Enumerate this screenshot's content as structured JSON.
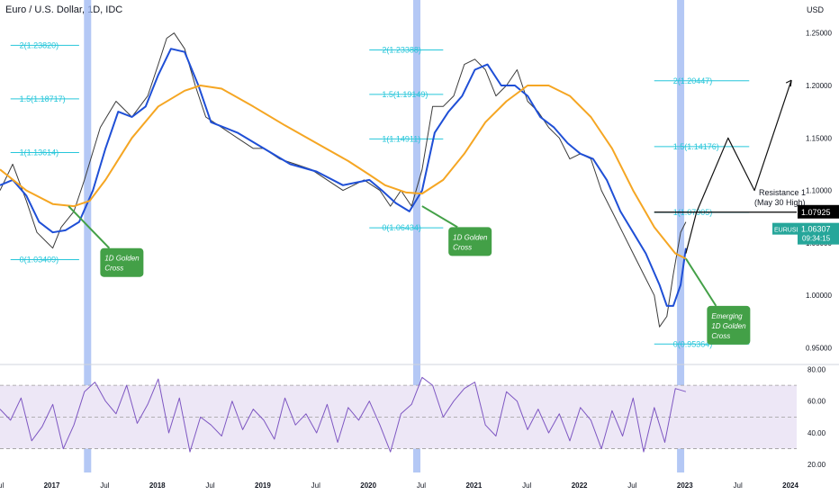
{
  "header": {
    "title": "Euro / U.S. Dollar, 1D, IDC",
    "currency": "USD"
  },
  "colors": {
    "price": "#3b3b3b",
    "ma_fast": "#1f4fd6",
    "ma_slow": "#f5a623",
    "fib": "#26c6da",
    "highlight": "#9bb5f2",
    "callout": "#43a047",
    "rsi": "#7e57c2",
    "rsi_band": "#ede7f6",
    "black_level": "#000000",
    "eurusd_tag": "#26a69a"
  },
  "chart_data": [
    {
      "type": "line",
      "title": "",
      "price_axis": {
        "ticks": [
          0.95,
          1.0,
          1.05,
          1.1,
          1.15,
          1.2,
          1.25
        ],
        "tick_labels": [
          "0.95000",
          "1.00000",
          "1.05000",
          "1.10000",
          "1.15000",
          "1.20000",
          "1.25000"
        ],
        "ylim": [
          0.935,
          1.26
        ]
      },
      "time_axis": {
        "labels": [
          "Jul",
          "2017",
          "Jul",
          "2018",
          "Jul",
          "2019",
          "Jul",
          "2020",
          "Jul",
          "2021",
          "Jul",
          "2022",
          "Jul",
          "2023",
          "Jul",
          "2024"
        ],
        "xlim": [
          2016.5,
          2024.05
        ]
      },
      "series": [
        {
          "name": "",
          "role": "price",
          "x": [
            2016.5,
            2016.62,
            2016.75,
            2016.85,
            2016.95,
            2017.0,
            2017.08,
            2017.2,
            2017.3,
            2017.45,
            2017.6,
            2017.75,
            2017.9,
            2018.0,
            2018.08,
            2018.15,
            2018.25,
            2018.35,
            2018.45,
            2018.6,
            2018.75,
            2018.9,
            2019.0,
            2019.15,
            2019.3,
            2019.45,
            2019.6,
            2019.75,
            2019.85,
            2019.95,
            2020.1,
            2020.2,
            2020.3,
            2020.4,
            2020.5,
            2020.6,
            2020.7,
            2020.8,
            2020.9,
            2021.0,
            2021.1,
            2021.2,
            2021.3,
            2021.4,
            2021.5,
            2021.6,
            2021.7,
            2021.8,
            2021.9,
            2022.0,
            2022.1,
            2022.2,
            2022.3,
            2022.4,
            2022.5,
            2022.6,
            2022.7,
            2022.75,
            2022.82,
            2022.88,
            2022.95,
            2023.0
          ],
          "values": [
            1.1,
            1.125,
            1.09,
            1.06,
            1.05,
            1.045,
            1.065,
            1.08,
            1.11,
            1.16,
            1.185,
            1.17,
            1.19,
            1.22,
            1.245,
            1.25,
            1.235,
            1.2,
            1.17,
            1.16,
            1.15,
            1.14,
            1.14,
            1.13,
            1.125,
            1.12,
            1.11,
            1.1,
            1.105,
            1.11,
            1.1,
            1.085,
            1.1,
            1.085,
            1.12,
            1.18,
            1.18,
            1.19,
            1.22,
            1.225,
            1.215,
            1.19,
            1.2,
            1.215,
            1.185,
            1.175,
            1.16,
            1.15,
            1.13,
            1.135,
            1.13,
            1.1,
            1.08,
            1.06,
            1.04,
            1.02,
            1.0,
            0.97,
            0.98,
            1.02,
            1.06,
            1.07
          ]
        },
        {
          "name": "",
          "role": "ma_fast",
          "x": [
            2016.5,
            2016.62,
            2016.75,
            2016.87,
            2017.0,
            2017.12,
            2017.25,
            2017.38,
            2017.5,
            2017.62,
            2017.75,
            2017.88,
            2018.0,
            2018.12,
            2018.25,
            2018.38,
            2018.5,
            2018.75,
            2019.0,
            2019.25,
            2019.5,
            2019.75,
            2020.0,
            2020.12,
            2020.25,
            2020.38,
            2020.5,
            2020.62,
            2020.75,
            2020.88,
            2021.0,
            2021.12,
            2021.25,
            2021.38,
            2021.5,
            2021.62,
            2021.75,
            2021.88,
            2022.0,
            2022.12,
            2022.25,
            2022.38,
            2022.5,
            2022.62,
            2022.75,
            2022.82,
            2022.88,
            2022.95,
            2023.0
          ],
          "values": [
            1.105,
            1.11,
            1.095,
            1.07,
            1.06,
            1.062,
            1.07,
            1.1,
            1.14,
            1.175,
            1.17,
            1.18,
            1.21,
            1.235,
            1.232,
            1.2,
            1.165,
            1.155,
            1.14,
            1.125,
            1.118,
            1.105,
            1.11,
            1.1,
            1.088,
            1.08,
            1.1,
            1.155,
            1.175,
            1.19,
            1.215,
            1.22,
            1.2,
            1.2,
            1.19,
            1.17,
            1.16,
            1.145,
            1.135,
            1.13,
            1.11,
            1.08,
            1.06,
            1.04,
            1.01,
            0.99,
            0.99,
            1.01,
            1.045
          ]
        },
        {
          "name": "",
          "role": "ma_slow",
          "x": [
            2016.5,
            2016.75,
            2017.0,
            2017.2,
            2017.35,
            2017.5,
            2017.75,
            2018.0,
            2018.25,
            2018.4,
            2018.6,
            2018.9,
            2019.2,
            2019.5,
            2019.8,
            2020.0,
            2020.15,
            2020.35,
            2020.5,
            2020.7,
            2020.9,
            2021.1,
            2021.3,
            2021.5,
            2021.7,
            2021.9,
            2022.1,
            2022.3,
            2022.5,
            2022.7,
            2022.9,
            2023.0
          ],
          "values": [
            1.12,
            1.1,
            1.087,
            1.085,
            1.09,
            1.11,
            1.15,
            1.18,
            1.195,
            1.2,
            1.197,
            1.18,
            1.162,
            1.145,
            1.128,
            1.115,
            1.105,
            1.098,
            1.097,
            1.11,
            1.135,
            1.165,
            1.185,
            1.2,
            1.2,
            1.19,
            1.17,
            1.14,
            1.1,
            1.065,
            1.04,
            1.035
          ]
        },
        {
          "name": "",
          "role": "projection",
          "x": [
            2023.0,
            2023.1,
            2023.4,
            2023.65,
            2024.0
          ],
          "values": [
            1.04,
            1.079,
            1.15,
            1.1,
            1.205
          ]
        }
      ],
      "fib_levels": [
        {
          "label": "2(1.23820)",
          "value": 1.2382,
          "x0": 2016.6,
          "x1": 2017.25
        },
        {
          "label": "1.5(1.18717)",
          "value": 1.18717,
          "x0": 2016.6,
          "x1": 2017.25
        },
        {
          "label": "1(1.13614)",
          "value": 1.13614,
          "x0": 2016.6,
          "x1": 2017.25
        },
        {
          "label": "0(1.03409)",
          "value": 1.03409,
          "x0": 2016.6,
          "x1": 2017.25
        },
        {
          "label": "2(1.23388)",
          "value": 1.23388,
          "x0": 2020.0,
          "x1": 2020.7
        },
        {
          "label": "1.5(1.19149)",
          "value": 1.19149,
          "x0": 2020.0,
          "x1": 2020.7
        },
        {
          "label": "1(1.14911)",
          "value": 1.14911,
          "x0": 2020.0,
          "x1": 2020.7
        },
        {
          "label": "0(1.06434)",
          "value": 1.06434,
          "x0": 2020.0,
          "x1": 2020.7
        },
        {
          "label": "2(1.20447)",
          "value": 1.20447,
          "x0": 2022.7,
          "x1": 2023.6
        },
        {
          "label": "1.5(1.14176)",
          "value": 1.14176,
          "x0": 2022.7,
          "x1": 2023.6
        },
        {
          "label": "1(1.07905)",
          "value": 1.07905,
          "x0": 2022.7,
          "x1": 2023.6
        },
        {
          "label": "0(0.95364)",
          "value": 0.95364,
          "x0": 2022.7,
          "x1": 2023.6
        }
      ],
      "resistance": {
        "value": 1.07925,
        "label": "1.07925",
        "x0": 2022.7,
        "annotation_line1": "Resistance 1",
        "annotation_line2": "(May 30 High)"
      },
      "current": {
        "symbol": "EURUSD",
        "price": "1.06307",
        "countdown": "09:34:15",
        "value": 1.06307
      },
      "highlight_bands": [
        2017.33,
        2020.45,
        2022.95
      ],
      "annotations": [
        {
          "text": "1D Golden\nCross",
          "x": 2017.45,
          "y": 1.045
        },
        {
          "text": "1D Golden\nCross",
          "x": 2020.75,
          "y": 1.065
        },
        {
          "text": "Emerging\n1D Golden\nCross",
          "x": 2023.2,
          "y": 0.99
        }
      ]
    },
    {
      "type": "line",
      "title": "",
      "rsi_axis": {
        "ticks": [
          20,
          40,
          60,
          80
        ],
        "tick_labels": [
          "20.00",
          "40.00",
          "60.00",
          "80.00"
        ],
        "ylim": [
          15,
          82
        ]
      },
      "bands": {
        "upper": 70,
        "lower": 30,
        "mid": 50
      },
      "series": [
        {
          "name": "",
          "role": "rsi",
          "x": [
            2016.5,
            2016.6,
            2016.7,
            2016.8,
            2016.9,
            2017.0,
            2017.1,
            2017.2,
            2017.3,
            2017.4,
            2017.5,
            2017.6,
            2017.7,
            2017.8,
            2017.9,
            2018.0,
            2018.1,
            2018.2,
            2018.3,
            2018.4,
            2018.5,
            2018.6,
            2018.7,
            2018.8,
            2018.9,
            2019.0,
            2019.1,
            2019.2,
            2019.3,
            2019.4,
            2019.5,
            2019.6,
            2019.7,
            2019.8,
            2019.9,
            2020.0,
            2020.1,
            2020.2,
            2020.3,
            2020.4,
            2020.5,
            2020.6,
            2020.7,
            2020.8,
            2020.9,
            2021.0,
            2021.1,
            2021.2,
            2021.3,
            2021.4,
            2021.5,
            2021.6,
            2021.7,
            2021.8,
            2021.9,
            2022.0,
            2022.1,
            2022.2,
            2022.3,
            2022.4,
            2022.5,
            2022.6,
            2022.7,
            2022.8,
            2022.9,
            2023.0
          ],
          "values": [
            55,
            48,
            62,
            35,
            44,
            58,
            30,
            45,
            66,
            72,
            60,
            52,
            70,
            46,
            58,
            74,
            40,
            62,
            28,
            50,
            45,
            38,
            60,
            42,
            55,
            48,
            36,
            62,
            45,
            52,
            40,
            58,
            34,
            56,
            48,
            60,
            45,
            28,
            52,
            58,
            75,
            70,
            50,
            60,
            68,
            72,
            45,
            38,
            66,
            60,
            42,
            55,
            40,
            52,
            35,
            56,
            48,
            30,
            54,
            38,
            62,
            28,
            56,
            34,
            68,
            66
          ]
        }
      ]
    }
  ]
}
